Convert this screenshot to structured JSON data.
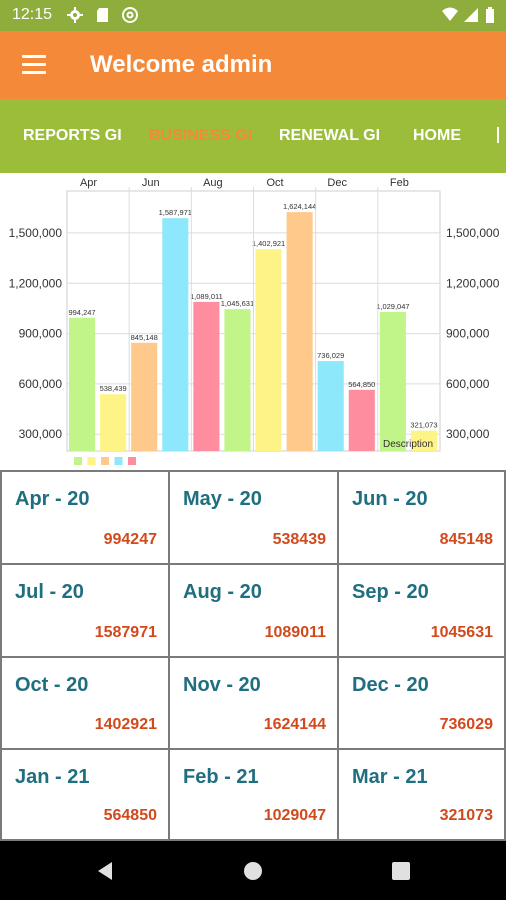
{
  "status_bar": {
    "time": "12:15",
    "left_icons": [
      "settings-icon",
      "sd-card-icon",
      "at-sign-icon"
    ],
    "right_icons": [
      "wifi-icon",
      "signal-icon",
      "battery-icon"
    ]
  },
  "app_bar": {
    "title": "Welcome admin",
    "menu_icon": "hamburger-menu-icon",
    "color": "#f4893a"
  },
  "tabs": [
    {
      "label": "REPORTS GI",
      "active": false
    },
    {
      "label": "BUSINESS GI",
      "active": true
    },
    {
      "label": "RENEWAL GI",
      "active": false
    },
    {
      "label": "HOME",
      "active": false
    }
  ],
  "chart_data": {
    "type": "bar",
    "top_axis_labels": [
      "Apr",
      "Jun",
      "Aug",
      "Oct",
      "Dec",
      "Feb"
    ],
    "y_ticks_left": [
      "1,500,000",
      "1,200,000",
      "900,000",
      "600,000",
      "300,000"
    ],
    "y_ticks_right": [
      "1,500,000",
      "1,200,000",
      "900,000",
      "600,000",
      "300,000"
    ],
    "y_tick_values": [
      1500000,
      1200000,
      900000,
      600000,
      300000
    ],
    "values": [
      994247,
      538439,
      845148,
      1587971,
      1089011,
      1045631,
      1402921,
      1624144,
      736029,
      564850,
      1029047,
      321073
    ],
    "value_labels": [
      "994,247",
      "538,439",
      "845,148",
      "1,587,971",
      "1,089,011",
      "1,045,631",
      "1,402,921",
      "1,624,144",
      "736,029",
      "564,850",
      "1,029,047",
      "321,073"
    ],
    "bar_colors": [
      "#c1f58a",
      "#fef387",
      "#fec98a",
      "#8de8fb",
      "#fe8da0"
    ],
    "legend_colors": [
      "#c1f58a",
      "#fef387",
      "#fec98a",
      "#8de8fb",
      "#fe8da0"
    ],
    "ylim": [
      200000,
      1750000
    ],
    "grid": true,
    "description": "Description"
  },
  "months": [
    {
      "month": "Apr - 20",
      "value": "994247"
    },
    {
      "month": "May - 20",
      "value": "538439"
    },
    {
      "month": "Jun - 20",
      "value": "845148"
    },
    {
      "month": "Jul - 20",
      "value": "1587971"
    },
    {
      "month": "Aug - 20",
      "value": "1089011"
    },
    {
      "month": "Sep - 20",
      "value": "1045631"
    },
    {
      "month": "Oct - 20",
      "value": "1402921"
    },
    {
      "month": "Nov - 20",
      "value": "1624144"
    },
    {
      "month": "Dec - 20",
      "value": "736029"
    },
    {
      "month": "Jan - 21",
      "value": "564850"
    },
    {
      "month": "Feb - 21",
      "value": "1029047"
    },
    {
      "month": "Mar - 21",
      "value": "321073"
    }
  ],
  "colors": {
    "status_bar": "#8fad3c",
    "tab_bar": "#9bbd3a",
    "active_tab": "#f4893a",
    "month_text": "#1f6f80",
    "value_text": "#d2491c"
  },
  "nav_bar": {
    "icons": [
      "back-icon",
      "home-icon",
      "recents-icon"
    ]
  }
}
